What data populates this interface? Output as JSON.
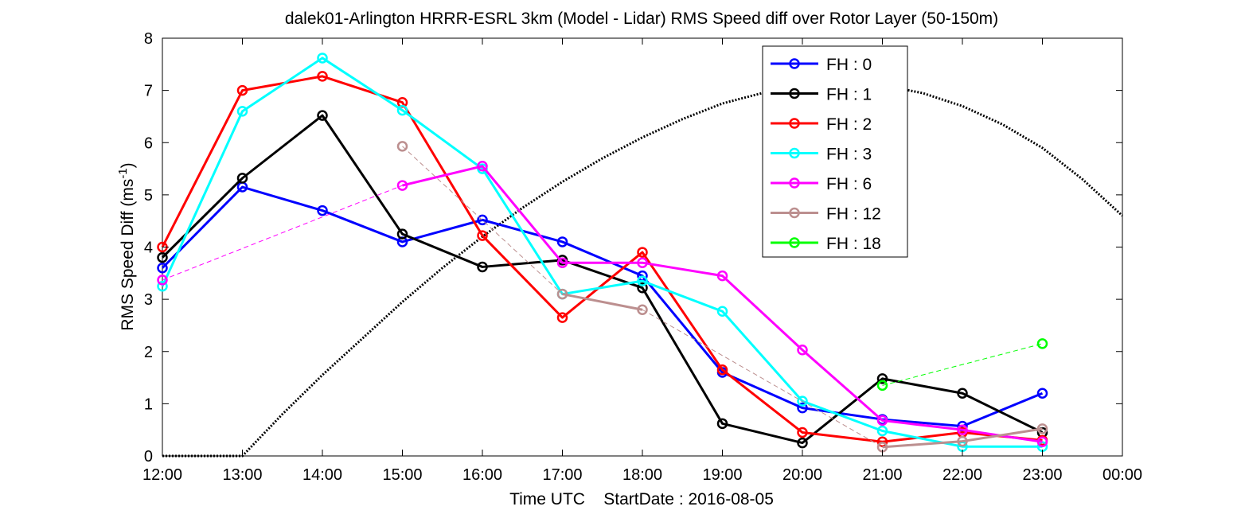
{
  "chart_data": {
    "type": "line",
    "title": "dalek01-Arlington HRRR-ESRL 3km (Model - Lidar) RMS Speed diff over Rotor Layer (50-150m)",
    "xlabel": "Time UTC    StartDate : 2016-08-05",
    "ylabel": "RMS Speed Diff (ms",
    "ylabel_sup": "-1",
    "ylabel_end": ")",
    "x_tick_labels": [
      "12:00",
      "13:00",
      "14:00",
      "15:00",
      "16:00",
      "17:00",
      "18:00",
      "19:00",
      "20:00",
      "21:00",
      "22:00",
      "23:00",
      "00:00"
    ],
    "y_tick_labels": [
      "0",
      "1",
      "2",
      "3",
      "4",
      "5",
      "6",
      "7",
      "8"
    ],
    "xlim": [
      12,
      24
    ],
    "ylim": [
      0,
      8
    ],
    "grid": false,
    "legend_position": "top-right",
    "series": [
      {
        "name": "FH : 0",
        "color": "#0000ff",
        "width": 3,
        "x": [
          12,
          13,
          14,
          15,
          16,
          17,
          18,
          19,
          20,
          21,
          22,
          23
        ],
        "y": [
          3.6,
          5.15,
          4.7,
          4.1,
          4.52,
          4.1,
          3.45,
          1.6,
          0.92,
          0.7,
          0.57,
          1.2
        ]
      },
      {
        "name": "FH : 1",
        "color": "#000000",
        "width": 3,
        "x": [
          12,
          13,
          14,
          15,
          16,
          17,
          18,
          19,
          20,
          21,
          22,
          23
        ],
        "y": [
          3.8,
          5.32,
          6.52,
          4.25,
          3.62,
          3.75,
          3.22,
          0.62,
          0.25,
          1.48,
          1.2,
          0.45
        ]
      },
      {
        "name": "FH : 2",
        "color": "#ff0000",
        "width": 3,
        "x": [
          12,
          13,
          14,
          15,
          16,
          17,
          18,
          19,
          20,
          21,
          22,
          23
        ],
        "y": [
          4.0,
          7.0,
          7.27,
          6.77,
          4.22,
          2.65,
          3.9,
          1.65,
          0.45,
          0.27,
          0.45,
          0.3
        ]
      },
      {
        "name": "FH : 3",
        "color": "#00ffff",
        "width": 3,
        "x": [
          12,
          13,
          14,
          15,
          16,
          17,
          18,
          19,
          20,
          21,
          22,
          23
        ],
        "y": [
          3.25,
          6.6,
          7.62,
          6.62,
          5.5,
          3.1,
          3.35,
          2.77,
          1.05,
          0.48,
          0.18,
          0.18
        ]
      },
      {
        "name": "FH : 6",
        "color": "#ff00ff",
        "width": 3,
        "segments": [
          {
            "x": [
              12,
              15
            ],
            "y": [
              3.37,
              5.18
            ],
            "dashed": true
          },
          {
            "x": [
              15,
              16,
              17,
              18,
              19,
              20,
              21,
              22,
              23
            ],
            "y": [
              5.18,
              5.55,
              3.7,
              3.7,
              3.45,
              2.03,
              0.68,
              0.5,
              0.27
            ],
            "dashed": false
          }
        ],
        "x": [
          12,
          15,
          16,
          17,
          18,
          19,
          20,
          21,
          22,
          23
        ],
        "y": [
          3.37,
          5.18,
          5.55,
          3.7,
          3.7,
          3.45,
          2.03,
          0.68,
          0.5,
          0.27
        ]
      },
      {
        "name": "FH : 12",
        "color": "#bc8f8f",
        "width": 3,
        "segments": [
          {
            "x": [
              15,
              17
            ],
            "y": [
              5.93,
              3.1
            ],
            "dashed": true
          },
          {
            "x": [
              17,
              18
            ],
            "y": [
              3.1,
              2.8
            ],
            "dashed": false
          },
          {
            "x": [
              18,
              21
            ],
            "y": [
              2.8,
              0.17
            ],
            "dashed": true
          },
          {
            "x": [
              21,
              22,
              23
            ],
            "y": [
              0.17,
              0.28,
              0.52
            ],
            "dashed": false
          }
        ],
        "x": [
          15,
          17,
          18,
          21,
          22,
          23
        ],
        "y": [
          5.93,
          3.1,
          2.8,
          0.17,
          0.28,
          0.52
        ]
      },
      {
        "name": "FH : 18",
        "color": "#00ff00",
        "width": 3,
        "segments": [
          {
            "x": [
              21,
              23
            ],
            "y": [
              1.35,
              2.15
            ],
            "dashed": true
          }
        ],
        "x": [
          21,
          23
        ],
        "y": [
          1.35,
          2.15
        ]
      }
    ],
    "reference_curve": {
      "color": "#000000",
      "style": "dotted",
      "x": [
        12,
        13,
        13.5,
        14,
        14.5,
        15,
        15.5,
        16,
        16.5,
        17,
        17.5,
        18,
        18.5,
        19,
        19.5,
        20,
        20.5,
        21,
        21.5,
        22,
        22.5,
        23,
        23.5,
        24
      ],
      "y": [
        0,
        0,
        0.8,
        1.55,
        2.25,
        2.95,
        3.6,
        4.2,
        4.75,
        5.25,
        5.7,
        6.1,
        6.45,
        6.75,
        6.95,
        7.1,
        7.15,
        7.1,
        6.95,
        6.7,
        6.35,
        5.9,
        5.3,
        4.6
      ]
    }
  }
}
